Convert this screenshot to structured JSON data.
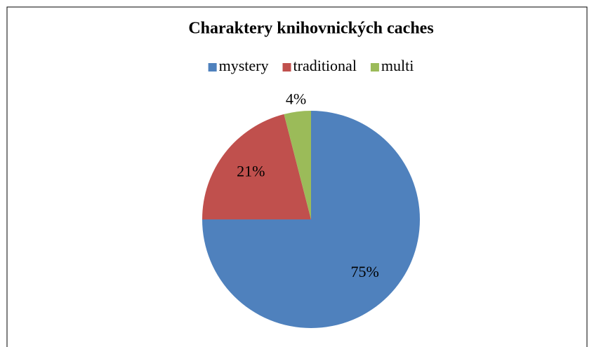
{
  "chart_data": {
    "type": "pie",
    "title": "Charaktery knihovnických caches",
    "categories": [
      "mystery",
      "traditional",
      "multi"
    ],
    "values": [
      75,
      21,
      4
    ],
    "value_labels": [
      "75%",
      "21%",
      "4%"
    ],
    "colors": [
      "#4f81bd",
      "#c0504d",
      "#9bbb59"
    ],
    "legend": "top"
  }
}
